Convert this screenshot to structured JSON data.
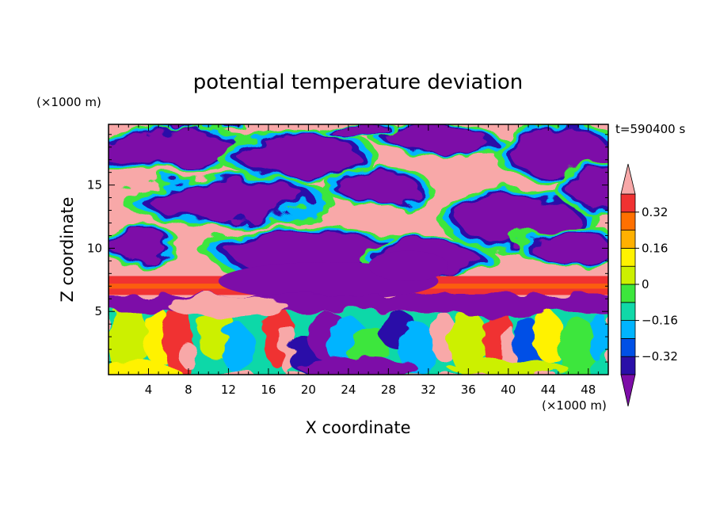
{
  "chart_data": {
    "type": "heatmap",
    "title": "potential temperature deviation",
    "xlabel": "X coordinate",
    "ylabel": "Z coordinate",
    "x_unit": "(×1000 m)",
    "y_unit": "(×1000 m)",
    "time_label": "t=590400 s",
    "xlim": [
      0,
      50
    ],
    "ylim": [
      0,
      19.8
    ],
    "x_ticks": [
      4,
      8,
      12,
      16,
      20,
      24,
      28,
      32,
      36,
      40,
      44,
      48
    ],
    "y_ticks": [
      5,
      10,
      15
    ],
    "colorbar": {
      "levels": [
        -0.4,
        -0.32,
        -0.24,
        -0.16,
        -0.08,
        0,
        0.08,
        0.16,
        0.24,
        0.32,
        0.4
      ],
      "labels": [
        "0.32",
        "0.16",
        "0",
        "-0.16",
        "-0.32"
      ],
      "label_values": [
        0.32,
        0.16,
        0,
        -0.16,
        -0.32
      ],
      "colors": [
        "#7d0da8",
        "#2a0fa8",
        "#0050e6",
        "#00b4ff",
        "#10d8a8",
        "#3ce63c",
        "#ccf000",
        "#fff200",
        "#ffb000",
        "#ff7000",
        "#f03232",
        "#f8a8a8"
      ],
      "extend": "both"
    },
    "layers": [
      {
        "z_range": [
          9,
          19.8
        ],
        "description": "alternating -0.4 / +0.4 blobs"
      },
      {
        "z_range": [
          6.3,
          7.8
        ],
        "value": 0.34
      },
      {
        "z_range": [
          0,
          5
        ],
        "description": "mixed values -0.3 to 0.35"
      }
    ]
  }
}
